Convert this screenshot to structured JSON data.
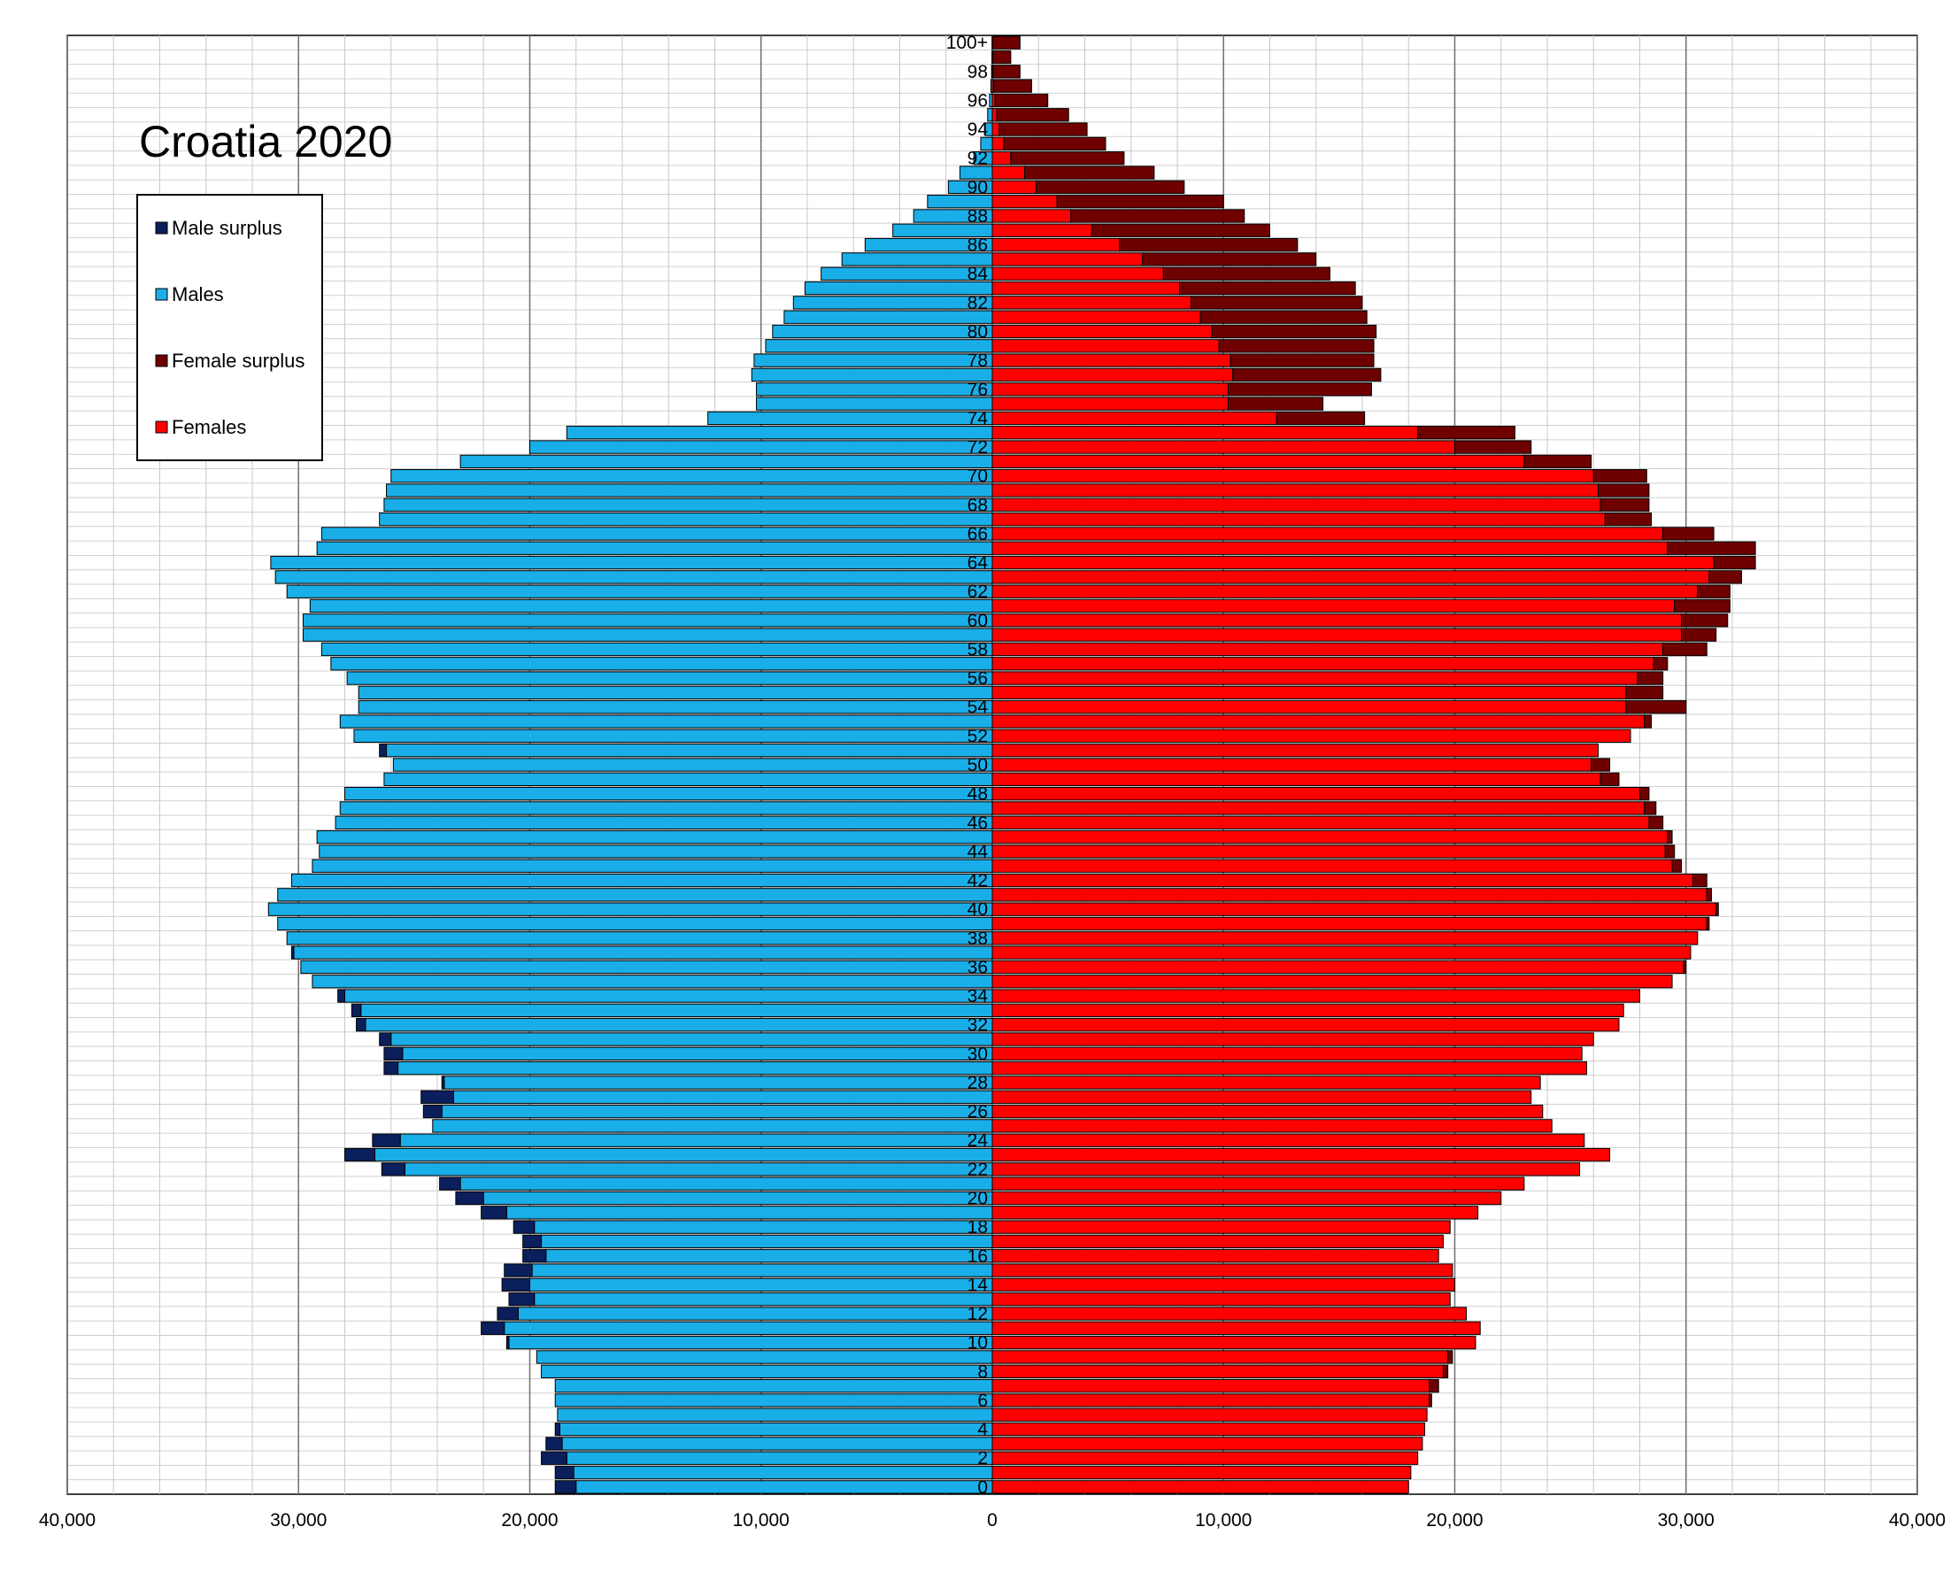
{
  "chart_data": {
    "type": "bar",
    "orientation": "horizontal-pyramid",
    "title": "Croatia 2020",
    "xlim": [
      -40000,
      40000
    ],
    "x_ticks": [
      -40000,
      -30000,
      -20000,
      -10000,
      0,
      10000,
      20000,
      30000,
      40000
    ],
    "x_tick_labels": [
      "40,000",
      "30,000",
      "20,000",
      "10,000",
      "0",
      "10,000",
      "20,000",
      "30,000",
      "40,000"
    ],
    "grid": true,
    "legend_position": "top-left",
    "legend": [
      {
        "key": "male_surplus",
        "label": "Male surplus",
        "color": "#0a1f5c"
      },
      {
        "key": "males",
        "label": "Males",
        "color": "#19aee8"
      },
      {
        "key": "female_surplus",
        "label": "Female surplus",
        "color": "#6e0000"
      },
      {
        "key": "females",
        "label": "Females",
        "color": "#ff0000"
      }
    ],
    "age_labels": [
      "0",
      "2",
      "4",
      "6",
      "8",
      "10",
      "12",
      "14",
      "16",
      "18",
      "20",
      "22",
      "24",
      "26",
      "28",
      "30",
      "32",
      "34",
      "36",
      "38",
      "40",
      "42",
      "44",
      "46",
      "48",
      "50",
      "52",
      "54",
      "56",
      "58",
      "60",
      "62",
      "64",
      "66",
      "68",
      "70",
      "72",
      "74",
      "76",
      "78",
      "80",
      "82",
      "84",
      "86",
      "88",
      "90",
      "92",
      "94",
      "96",
      "98",
      "100+"
    ],
    "ages": [
      "0",
      "1",
      "2",
      "3",
      "4",
      "5",
      "6",
      "7",
      "8",
      "9",
      "10",
      "11",
      "12",
      "13",
      "14",
      "15",
      "16",
      "17",
      "18",
      "19",
      "20",
      "21",
      "22",
      "23",
      "24",
      "25",
      "26",
      "27",
      "28",
      "29",
      "30",
      "31",
      "32",
      "33",
      "34",
      "35",
      "36",
      "37",
      "38",
      "39",
      "40",
      "41",
      "42",
      "43",
      "44",
      "45",
      "46",
      "47",
      "48",
      "49",
      "50",
      "51",
      "52",
      "53",
      "54",
      "55",
      "56",
      "57",
      "58",
      "59",
      "60",
      "61",
      "62",
      "63",
      "64",
      "65",
      "66",
      "67",
      "68",
      "69",
      "70",
      "71",
      "72",
      "73",
      "74",
      "75",
      "76",
      "77",
      "78",
      "79",
      "80",
      "81",
      "82",
      "83",
      "84",
      "85",
      "86",
      "87",
      "88",
      "89",
      "90",
      "91",
      "92",
      "93",
      "94",
      "95",
      "96",
      "97",
      "98",
      "99",
      "100+"
    ],
    "males": [
      18900,
      18900,
      19500,
      19300,
      18900,
      18800,
      18900,
      18900,
      19500,
      19700,
      21000,
      22100,
      21400,
      20900,
      21200,
      21100,
      20300,
      20300,
      20700,
      22100,
      23200,
      23900,
      26400,
      28000,
      26800,
      24200,
      24600,
      24700,
      23800,
      26300,
      26300,
      26500,
      27500,
      27700,
      28300,
      29400,
      29900,
      30300,
      30500,
      30900,
      31300,
      30900,
      30300,
      29400,
      29100,
      29200,
      28400,
      28200,
      28000,
      26300,
      25900,
      26500,
      27600,
      28200,
      27400,
      27400,
      27900,
      28600,
      29000,
      29800,
      29800,
      29500,
      30500,
      31000,
      31200,
      29200,
      29000,
      26500,
      26300,
      26200,
      26000,
      23000,
      20000,
      18400,
      12300,
      10200,
      10200,
      10400,
      10300,
      9800,
      9500,
      9000,
      8600,
      8100,
      7400,
      6500,
      5500,
      4300,
      3400,
      2800,
      1900,
      1400,
      800,
      500,
      300,
      200,
      120,
      60,
      30,
      15,
      10
    ],
    "females": [
      18000,
      18100,
      18400,
      18600,
      18700,
      18800,
      19000,
      19300,
      19700,
      19900,
      20900,
      21100,
      20500,
      19800,
      20000,
      19900,
      19300,
      19500,
      19800,
      21000,
      22000,
      23000,
      25400,
      26700,
      25600,
      24200,
      23800,
      23300,
      23700,
      25700,
      25500,
      26000,
      27100,
      27300,
      28000,
      29400,
      30000,
      30200,
      30500,
      31000,
      31400,
      31100,
      30900,
      29800,
      29500,
      29400,
      29000,
      28700,
      28400,
      27100,
      26700,
      26200,
      27600,
      28500,
      30000,
      29000,
      29000,
      29200,
      30900,
      31300,
      31800,
      31900,
      31900,
      32400,
      33000,
      33000,
      31200,
      28500,
      28400,
      28400,
      28300,
      25900,
      23300,
      22600,
      16100,
      14300,
      16400,
      16800,
      16500,
      16500,
      16600,
      16200,
      16000,
      15700,
      14600,
      14000,
      13200,
      12000,
      10900,
      10000,
      8300,
      7000,
      5700,
      4900,
      4100,
      3300,
      2400,
      1700,
      1200,
      800,
      1200
    ]
  }
}
